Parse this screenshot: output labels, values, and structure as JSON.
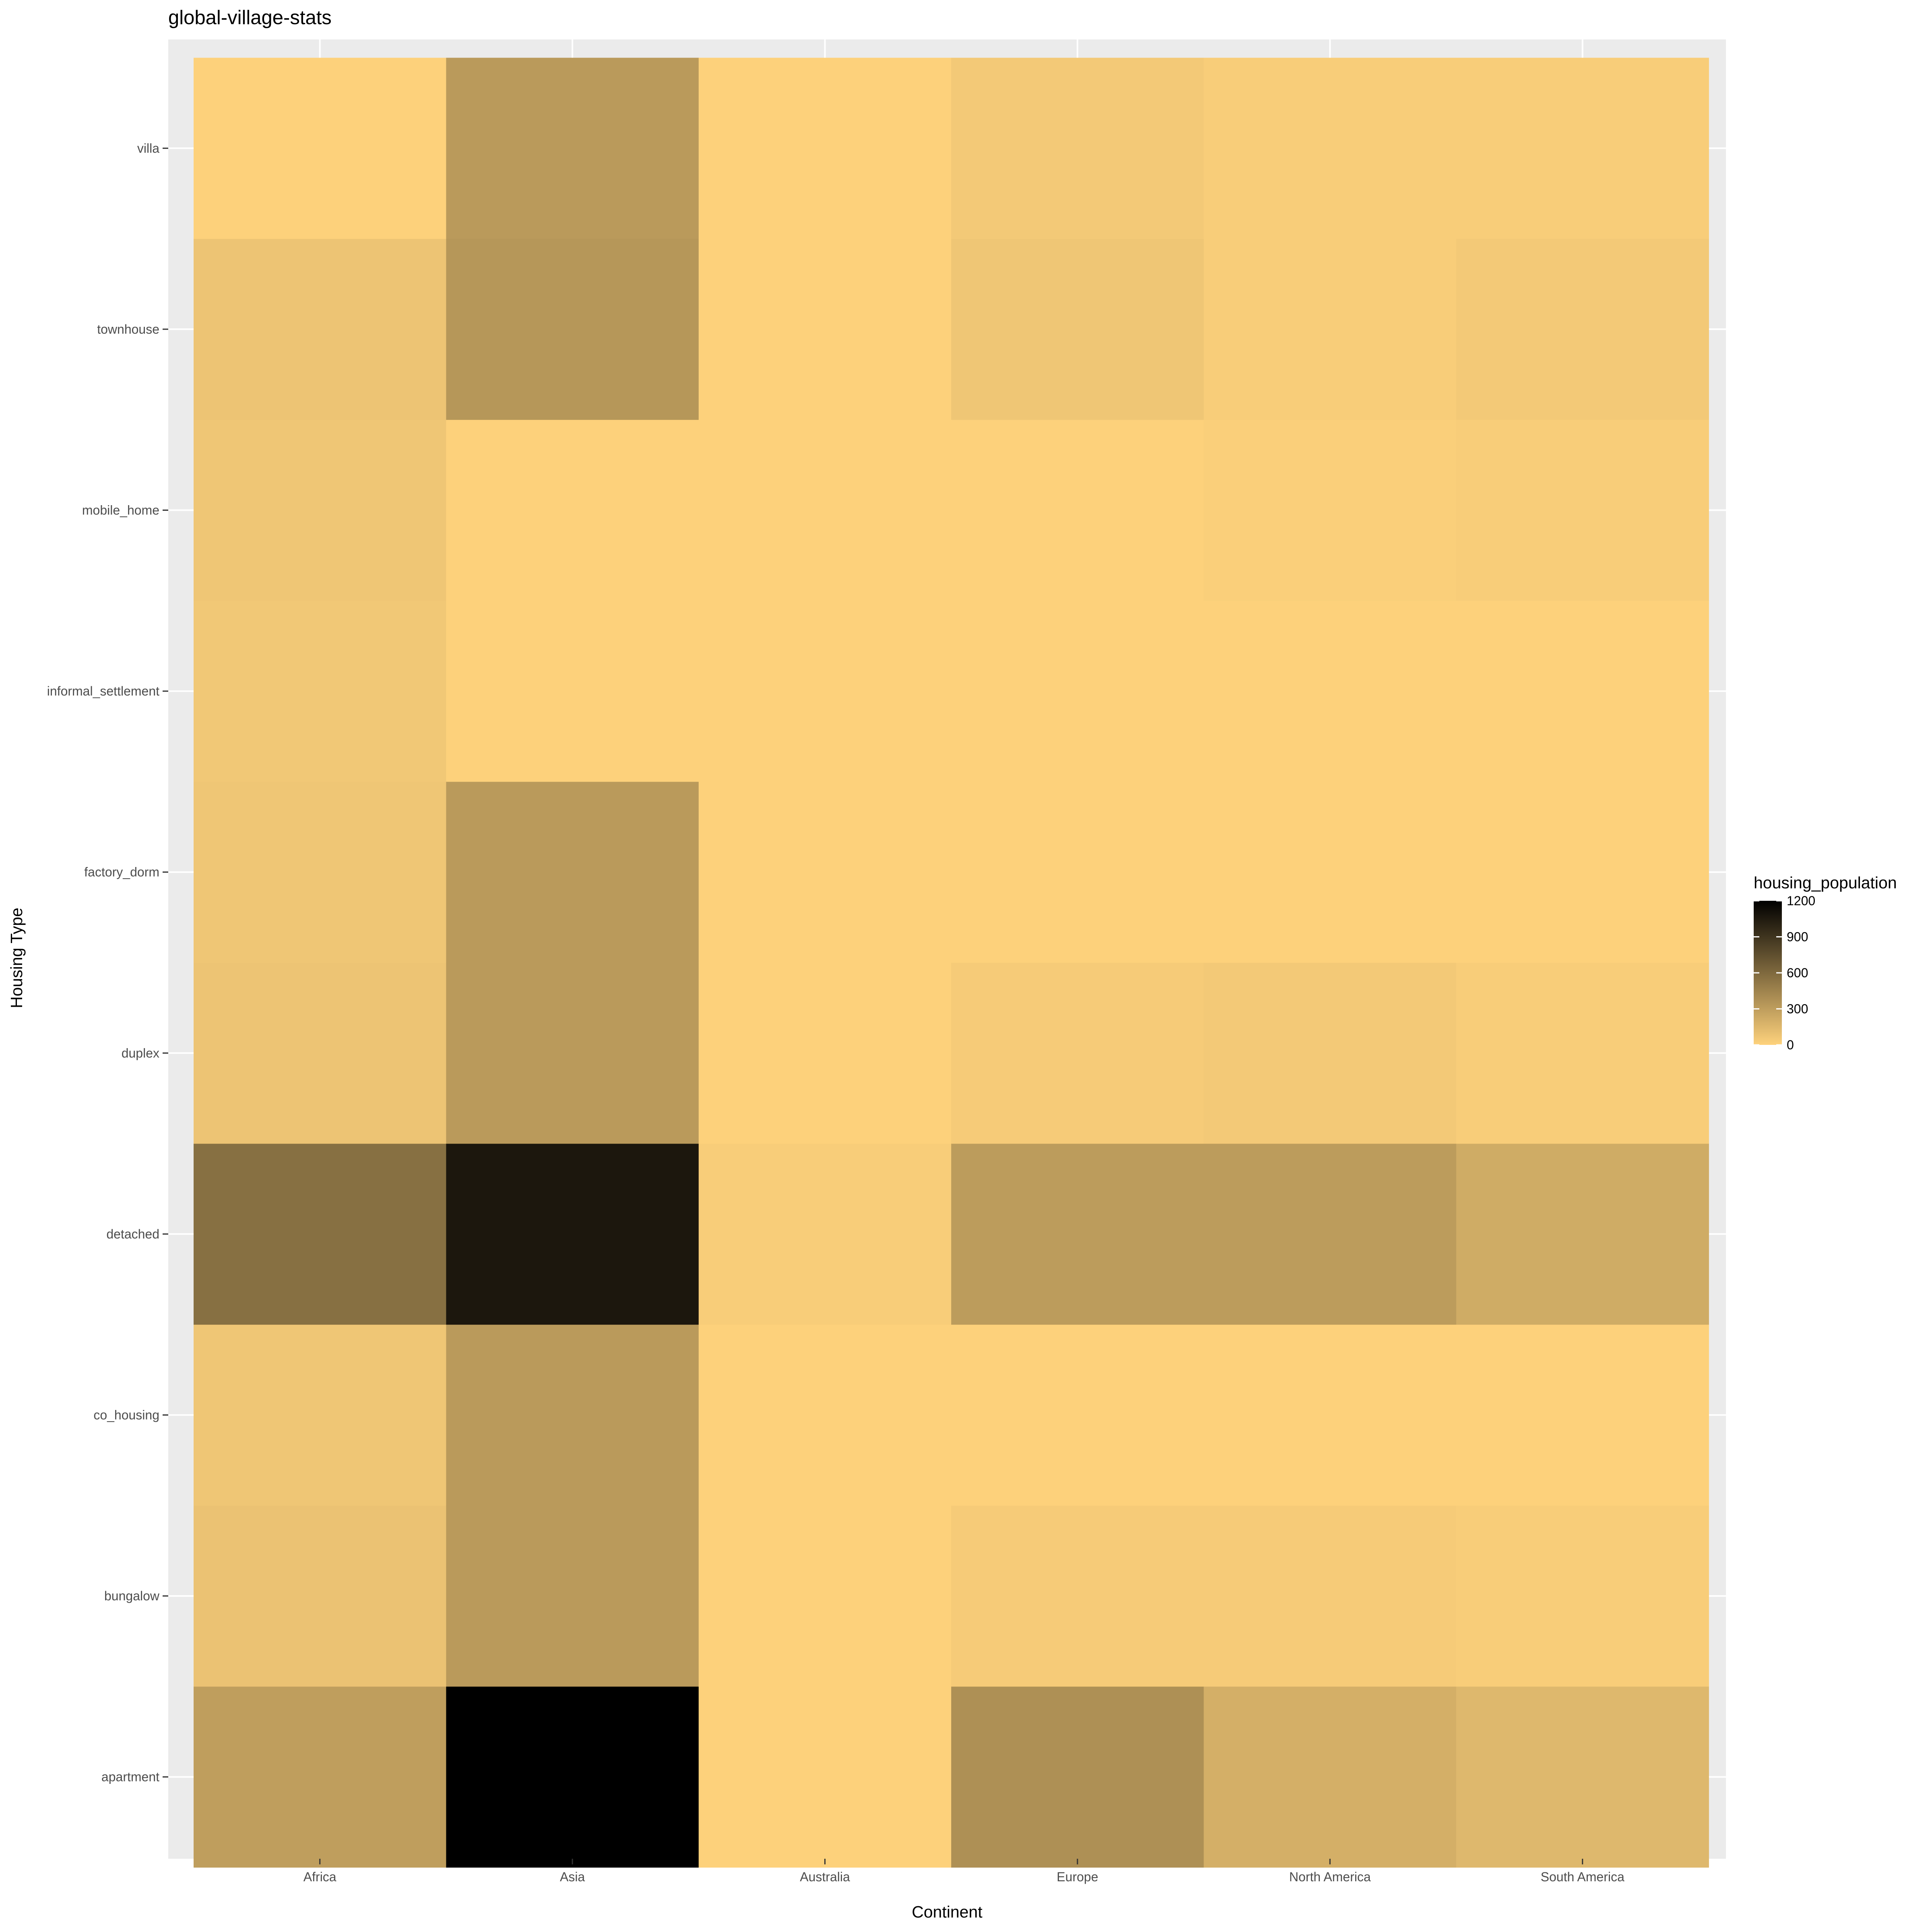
{
  "chart_data": {
    "type": "heatmap",
    "title": "global-village-stats",
    "xlabel": "Continent",
    "ylabel": "Housing Type",
    "x": [
      "Africa",
      "Asia",
      "Australia",
      "Europe",
      "North America",
      "South America"
    ],
    "y": [
      "apartment",
      "bungalow",
      "co_housing",
      "detached",
      "duplex",
      "factory_dorm",
      "informal_settlement",
      "mobile_home",
      "townhouse",
      "villa"
    ],
    "values": [
      [
        300,
        90,
        70,
        560,
        80,
        70,
        60,
        70,
        80,
        5
      ],
      [
        1220,
        320,
        320,
        1070,
        320,
        320,
        5,
        5,
        340,
        320
      ],
      [
        5,
        5,
        5,
        30,
        5,
        5,
        5,
        5,
        5,
        5
      ],
      [
        380,
        40,
        5,
        310,
        40,
        5,
        5,
        5,
        70,
        50
      ],
      [
        200,
        40,
        5,
        310,
        50,
        5,
        5,
        20,
        30,
        30
      ],
      [
        150,
        30,
        5,
        220,
        30,
        5,
        5,
        30,
        50,
        30
      ]
    ],
    "values_layout": "values[x_index][y_index]",
    "legend": {
      "title": "housing_population",
      "ticks": [
        0,
        300,
        600,
        900,
        1200
      ],
      "low_color": "#FED27C",
      "high_color": "#000000",
      "placement": "right"
    },
    "panel_background": "#EBEBEB",
    "grid": true
  }
}
